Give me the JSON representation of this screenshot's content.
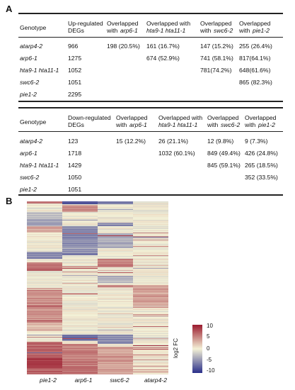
{
  "panel_a_label": "A",
  "panel_b_label": "B",
  "up_table": {
    "headers": [
      "Genotype",
      "Up-regulated",
      "DEGs",
      "Overlapped",
      "with",
      "arp6-1",
      "Overlapped with",
      "hta9-1 hta11-1",
      "Overlapped",
      "with",
      "swc6-2",
      "Overlapped",
      "with",
      "pie1-2"
    ],
    "rows": [
      {
        "genotype": "atarp4-2",
        "degs": "966",
        "c1": "198 (20.5%)",
        "c2": "161 (16.7%)",
        "c3": "147 (15.2%)",
        "c4": "255 (26.4%)"
      },
      {
        "genotype": "arp6-1",
        "degs": "1275",
        "c1": "",
        "c2": "674 (52.9%)",
        "c3": "741 (58.1%)",
        "c4": "817(64.1%)"
      },
      {
        "genotype": "hta9-1 hta11-1",
        "degs": "1052",
        "c1": "",
        "c2": "",
        "c3": "781(74.2%)",
        "c4": "648(61.6%)"
      },
      {
        "genotype": "swc6-2",
        "degs": "1051",
        "c1": "",
        "c2": "",
        "c3": "",
        "c4": "865 (82.3%)"
      },
      {
        "genotype": "pie1-2",
        "degs": "2295",
        "c1": "",
        "c2": "",
        "c3": "",
        "c4": ""
      }
    ]
  },
  "down_table": {
    "headers": [
      "Genotype",
      "Down-regulated",
      "DEGs",
      "Overlapped",
      "with",
      "arp6-1",
      "Overlapped with",
      "hta9-1 hta11-1",
      "Overlapped",
      "with",
      "swc6-2",
      "Overlapped",
      "with",
      "pie1-2"
    ],
    "rows": [
      {
        "genotype": "atarp4-2",
        "degs": "123",
        "c1": "15 (12.2%)",
        "c2": "26 (21.1%)",
        "c3": "12 (9.8%)",
        "c4": "9 (7.3%)"
      },
      {
        "genotype": "arp6-1",
        "degs": "1718",
        "c1": "",
        "c2": "1032 (60.1%)",
        "c3": "849 (49.4%)",
        "c4": "426 (24.8%)"
      },
      {
        "genotype": "hta9-1 hta11-1",
        "degs": "1429",
        "c1": "",
        "c2": "",
        "c3": "845 (59.1%)",
        "c4": "265 (18.5%)"
      },
      {
        "genotype": "swc6-2",
        "degs": "1050",
        "c1": "",
        "c2": "",
        "c3": "",
        "c4": "352 (33.5%)"
      },
      {
        "genotype": "pie1-2",
        "degs": "1051",
        "c1": "",
        "c2": "",
        "c3": "",
        "c4": ""
      }
    ]
  },
  "chart_data": {
    "type": "heatmap",
    "columns": [
      "pie1-2",
      "arp6-1",
      "swc6-2",
      "atarp4-2"
    ],
    "colorbar_title": "log2 FC",
    "colorbar_ticks": [
      "10",
      "5",
      "0",
      "-5",
      "-10"
    ],
    "value_range": [
      -10,
      10
    ],
    "colors": {
      "high": "#9b1b2e",
      "mid": "#f4f1d6",
      "low": "#2a2f8a"
    }
  }
}
